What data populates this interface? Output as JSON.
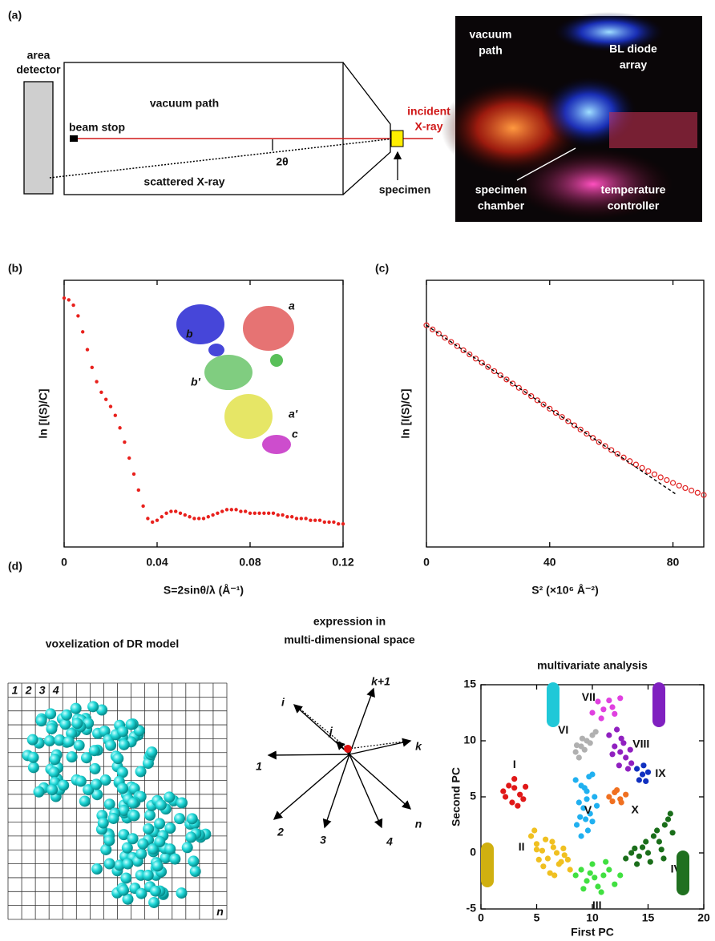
{
  "panel_labels": [
    "(a)",
    "(b)",
    "(c)",
    "(d)"
  ],
  "setup_diagram": {
    "area_detector": [
      "area",
      "detector"
    ],
    "vacuum_path": "vacuum path",
    "beam_stop": "beam stop",
    "angle": "2θ",
    "scattered": "scattered X-ray",
    "incident": [
      "incident",
      "X-ray"
    ],
    "specimen": "specimen"
  },
  "photo": {
    "labels": [
      [
        "vacuum",
        "path"
      ],
      [
        "BL diode",
        "array"
      ],
      [
        "specimen",
        "chamber"
      ],
      [
        "temperature",
        "controller"
      ]
    ]
  },
  "voxel": {
    "title": "voxelization of DR model",
    "column_labels": [
      "1",
      "2",
      "3",
      "4"
    ],
    "last_label": "n"
  },
  "vector_space": {
    "title": [
      "expression in",
      "multi-dimensional space"
    ],
    "labels": [
      "1",
      "2",
      "3",
      "4",
      "i",
      "j",
      "k",
      "k+1",
      "n"
    ]
  },
  "chart_data": [
    {
      "type": "line",
      "x_label": "S=2sinθ/λ (Å⁻¹)",
      "y_label": "ln [I(S)/C]",
      "xlim": [
        0,
        0.12
      ],
      "xticks": [
        0,
        0.04,
        0.08,
        0.12
      ],
      "ylim": [
        -7,
        0.5
      ],
      "annotations": [
        "a",
        "b",
        "b'",
        "a'",
        "c"
      ],
      "series": [
        {
          "color": "#e8201c",
          "marker": "dot",
          "x": [
            0,
            0.002,
            0.004,
            0.006,
            0.008,
            0.01,
            0.012,
            0.014,
            0.016,
            0.018,
            0.02,
            0.022,
            0.024,
            0.026,
            0.028,
            0.03,
            0.032,
            0.034,
            0.036,
            0.038,
            0.04,
            0.042,
            0.044,
            0.046,
            0.048,
            0.05,
            0.052,
            0.054,
            0.056,
            0.058,
            0.06,
            0.062,
            0.064,
            0.066,
            0.068,
            0.07,
            0.072,
            0.074,
            0.076,
            0.078,
            0.08,
            0.082,
            0.084,
            0.086,
            0.088,
            0.09,
            0.092,
            0.094,
            0.096,
            0.098,
            0.1,
            0.102,
            0.104,
            0.106,
            0.108,
            0.11,
            0.112,
            0.114,
            0.116,
            0.118,
            0.12
          ],
          "values": [
            0,
            -0.05,
            -0.2,
            -0.5,
            -0.95,
            -1.45,
            -1.95,
            -2.35,
            -2.65,
            -2.85,
            -3.05,
            -3.3,
            -3.65,
            -4.05,
            -4.5,
            -4.95,
            -5.4,
            -5.85,
            -6.2,
            -6.3,
            -6.25,
            -6.15,
            -6.05,
            -6,
            -6,
            -6.05,
            -6.1,
            -6.15,
            -6.2,
            -6.2,
            -6.2,
            -6.15,
            -6.1,
            -6.05,
            -6,
            -5.95,
            -5.95,
            -5.95,
            -6,
            -6,
            -6.05,
            -6.05,
            -6.05,
            -6.05,
            -6.05,
            -6.05,
            -6.1,
            -6.1,
            -6.15,
            -6.15,
            -6.2,
            -6.2,
            -6.2,
            -6.25,
            -6.25,
            -6.25,
            -6.3,
            -6.3,
            -6.3,
            -6.35,
            -6.35
          ]
        }
      ]
    },
    {
      "type": "line",
      "x_label": "S² (×10⁶ Å⁻²)",
      "y_label": "ln [I(S)/C]",
      "xlim": [
        0,
        90
      ],
      "xticks": [
        0,
        40,
        80
      ],
      "ylim": [
        -3.7,
        0.75
      ],
      "series": [
        {
          "color": "#e02020",
          "marker": "open-circle",
          "x": [
            0,
            2,
            4,
            6,
            8,
            10,
            12,
            14,
            16,
            18,
            20,
            22,
            24,
            26,
            28,
            30,
            32,
            34,
            36,
            38,
            40,
            42,
            44,
            46,
            48,
            50,
            52,
            54,
            56,
            58,
            60,
            62,
            64,
            66,
            68,
            70,
            72,
            74,
            76,
            78,
            80,
            82,
            84,
            86,
            88,
            90
          ],
          "values": [
            0,
            -0.07,
            -0.139,
            -0.209,
            -0.278,
            -0.348,
            -0.418,
            -0.487,
            -0.557,
            -0.626,
            -0.696,
            -0.766,
            -0.835,
            -0.905,
            -0.974,
            -1.044,
            -1.114,
            -1.183,
            -1.253,
            -1.322,
            -1.392,
            -1.462,
            -1.531,
            -1.601,
            -1.67,
            -1.74,
            -1.81,
            -1.879,
            -1.949,
            -2.016,
            -2.082,
            -2.146,
            -2.207,
            -2.267,
            -2.325,
            -2.381,
            -2.435,
            -2.487,
            -2.537,
            -2.584,
            -2.631,
            -2.675,
            -2.717,
            -2.758,
            -2.795,
            -2.832
          ]
        },
        {
          "color": "#000000",
          "dash": true,
          "x": [
            0,
            81
          ],
          "values": [
            0,
            -2.82
          ]
        }
      ]
    },
    {
      "type": "scatter",
      "title": "multivariate analysis",
      "x_label": "First PC",
      "y_label": "Second PC",
      "xlim": [
        0,
        20
      ],
      "xticks": [
        0,
        5,
        10,
        15,
        20
      ],
      "ylim": [
        -5,
        15
      ],
      "yticks": [
        -5,
        0,
        5,
        10,
        15
      ],
      "series": [
        {
          "name": "I",
          "color": "#e01818",
          "x": [
            2.0,
            2.5,
            3.0,
            3.5,
            4.0,
            2.8,
            3.3,
            2.2,
            3.8,
            3.0
          ],
          "values": [
            5.5,
            6.0,
            5.8,
            5.2,
            5.9,
            4.5,
            4.2,
            5.0,
            4.8,
            6.6
          ]
        },
        {
          "name": "II",
          "color": "#f0c020",
          "x": [
            4.5,
            5.0,
            5.5,
            6.0,
            6.5,
            7.0,
            7.5,
            8.0,
            5.2,
            5.8,
            6.2,
            6.8,
            7.2,
            4.8,
            6.4,
            7.8,
            5.6,
            6.6,
            7.4,
            5.0
          ],
          "values": [
            1.5,
            0.8,
            0.2,
            -0.5,
            0.5,
            -1.0,
            -0.2,
            -1.5,
            -0.6,
            1.2,
            -1.8,
            0.0,
            -0.8,
            2.0,
            1.0,
            -0.6,
            -1.2,
            -2.0,
            0.4,
            0.3
          ]
        },
        {
          "name": "III",
          "color": "#40e040",
          "x": [
            8.5,
            9.0,
            9.5,
            10.0,
            10.5,
            11.0,
            11.5,
            12.0,
            9.2,
            10.2,
            11.2,
            12.5,
            10.8,
            9.8
          ],
          "values": [
            -2.0,
            -1.5,
            -2.5,
            -1.0,
            -3.0,
            -2.0,
            -1.5,
            -2.8,
            -3.2,
            -2.2,
            -0.8,
            -2.0,
            -3.5,
            -1.8
          ]
        },
        {
          "name": "IV",
          "color": "#1a6e1a",
          "x": [
            13.0,
            13.5,
            14.0,
            14.5,
            15.0,
            15.5,
            16.0,
            16.5,
            17.0,
            14.2,
            15.2,
            16.2,
            17.2,
            15.8,
            16.8,
            14.8,
            13.8,
            16.4
          ],
          "values": [
            -0.5,
            0.0,
            -1.0,
            0.5,
            0.0,
            1.5,
            1.0,
            2.5,
            3.5,
            -0.3,
            -0.8,
            0.3,
            1.8,
            2.0,
            3.0,
            1.0,
            0.4,
            -0.5
          ]
        },
        {
          "name": "V",
          "color": "#20b0f0",
          "x": [
            8.5,
            9.0,
            9.5,
            10.0,
            8.8,
            9.2,
            9.8,
            10.2,
            9.4,
            8.6,
            9.6,
            10.4,
            9.0,
            9.3,
            9.7,
            8.9,
            10.0,
            9.5
          ],
          "values": [
            6.5,
            6.0,
            5.5,
            7.0,
            4.5,
            4.0,
            3.5,
            5.0,
            3.0,
            2.5,
            2.0,
            4.2,
            1.5,
            5.8,
            6.8,
            3.2,
            2.8,
            4.8
          ]
        },
        {
          "name": "VI",
          "color": "#b0b0b0",
          "x": [
            8.5,
            9.0,
            9.5,
            10.0,
            8.8,
            9.3,
            9.8,
            10.3,
            9.1,
            8.6
          ],
          "values": [
            9.0,
            9.5,
            10.0,
            10.5,
            8.5,
            9.2,
            9.8,
            10.8,
            10.2,
            9.6
          ]
        },
        {
          "name": "VII",
          "color": "#e040e0",
          "x": [
            10.0,
            10.5,
            11.0,
            11.5,
            12.0,
            10.8,
            11.8,
            12.5
          ],
          "values": [
            12.5,
            13.5,
            12.8,
            13.6,
            12.4,
            12.0,
            13.0,
            13.8
          ]
        },
        {
          "name": "VIII",
          "color": "#9020c0",
          "x": [
            11.5,
            12.0,
            12.5,
            13.0,
            13.5,
            12.2,
            12.8,
            13.2,
            11.8,
            12.6,
            13.4,
            12.4
          ],
          "values": [
            10.5,
            9.5,
            9.0,
            8.5,
            8.0,
            11.0,
            9.8,
            7.5,
            8.8,
            10.2,
            9.2,
            7.8
          ]
        },
        {
          "name": "IX",
          "color": "#1030c0",
          "x": [
            14.0,
            14.5,
            15.0,
            14.2,
            14.8,
            14.6
          ],
          "values": [
            7.5,
            7.0,
            7.2,
            6.5,
            6.4,
            7.8
          ]
        },
        {
          "name": "X",
          "color": "#f07020",
          "x": [
            11.5,
            12.0,
            12.5,
            13.0,
            11.8,
            12.6,
            12.2
          ],
          "values": [
            5.0,
            5.4,
            4.8,
            5.2,
            4.6,
            4.5,
            5.6
          ]
        }
      ]
    }
  ]
}
